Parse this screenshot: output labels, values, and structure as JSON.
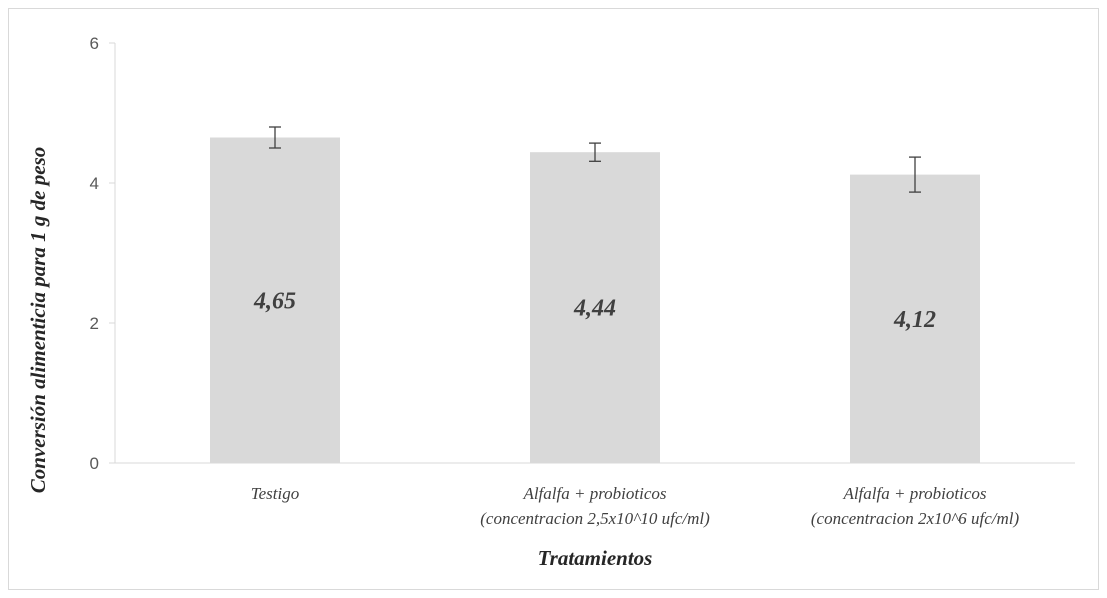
{
  "chart_data": {
    "type": "bar",
    "title": "",
    "xlabel": "Tratamientos",
    "ylabel": "Conversión alimenticia para 1 g de peso",
    "ylim": [
      0,
      6
    ],
    "yticks": [
      "0",
      "2",
      "4",
      "6"
    ],
    "categories": [
      [
        "Testigo"
      ],
      [
        "Alfalfa + probioticos",
        "(concentracion 2,5x10^10 ufc/ml)"
      ],
      [
        "Alfalfa + probioticos",
        "(concentracion 2x10^6 ufc/ml)"
      ]
    ],
    "values": [
      4.65,
      4.44,
      4.12
    ],
    "data_labels": [
      "4,65",
      "4,44",
      "4,12"
    ],
    "error": [
      0.15,
      0.13,
      0.25
    ],
    "bar_color": "#d9d9d9",
    "grid": false,
    "legend": "none"
  }
}
